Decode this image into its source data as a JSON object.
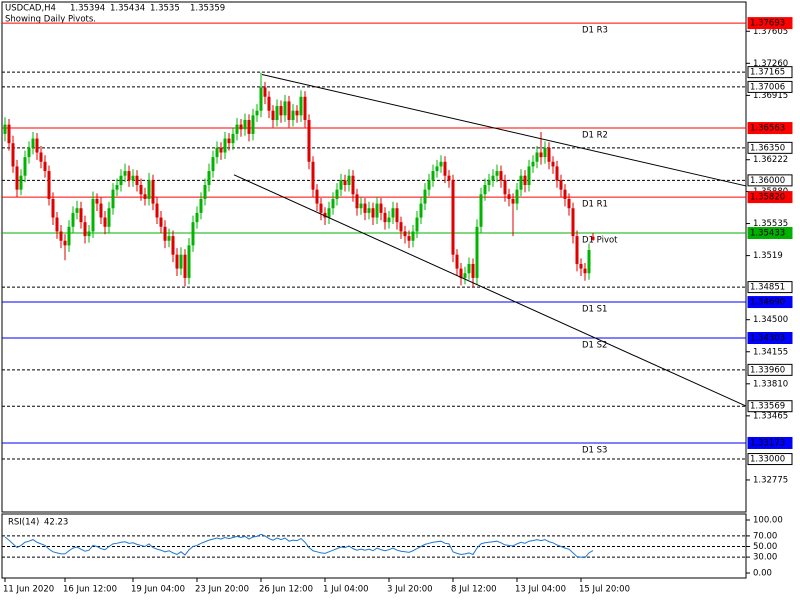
{
  "chart_data": {
    "type": "candlestick",
    "symbol": "USDCAD,H4",
    "subtitle": "Showing Daily Pivots.",
    "bull_color": "#00b400",
    "bear_color": "#e00000",
    "candles": [
      [
        1.365,
        1.3668,
        1.3642,
        1.366
      ],
      [
        1.366,
        1.3666,
        1.3632,
        1.364
      ],
      [
        1.364,
        1.3648,
        1.3608,
        1.3615
      ],
      [
        1.3615,
        1.3622,
        1.3582,
        1.359
      ],
      [
        1.359,
        1.3612,
        1.3584,
        1.3605
      ],
      [
        1.3605,
        1.3632,
        1.3598,
        1.3625
      ],
      [
        1.3625,
        1.3642,
        1.3618,
        1.3635
      ],
      [
        1.3635,
        1.3652,
        1.3628,
        1.3645
      ],
      [
        1.3645,
        1.3651,
        1.3622,
        1.363
      ],
      [
        1.363,
        1.3637,
        1.3613,
        1.362
      ],
      [
        1.362,
        1.3627,
        1.3603,
        1.361
      ],
      [
        1.361,
        1.3616,
        1.3573,
        1.358
      ],
      [
        1.358,
        1.3587,
        1.3552,
        1.356
      ],
      [
        1.356,
        1.3566,
        1.3537,
        1.3545
      ],
      [
        1.3545,
        1.3552,
        1.3527,
        1.3535
      ],
      [
        1.3535,
        1.3542,
        1.3514,
        1.353
      ],
      [
        1.353,
        1.3557,
        1.3523,
        1.355
      ],
      [
        1.355,
        1.3572,
        1.3543,
        1.3565
      ],
      [
        1.3565,
        1.3578,
        1.3558,
        1.357
      ],
      [
        1.357,
        1.3577,
        1.3548,
        1.3555
      ],
      [
        1.3555,
        1.3562,
        1.3532,
        1.354
      ],
      [
        1.354,
        1.3552,
        1.3533,
        1.3545
      ],
      [
        1.3545,
        1.3588,
        1.3538,
        1.358
      ],
      [
        1.358,
        1.3586,
        1.3567,
        1.3575
      ],
      [
        1.3575,
        1.3582,
        1.3553,
        1.356
      ],
      [
        1.356,
        1.3567,
        1.3542,
        1.355
      ],
      [
        1.355,
        1.3577,
        1.3543,
        1.357
      ],
      [
        1.357,
        1.3597,
        1.3563,
        1.359
      ],
      [
        1.359,
        1.3602,
        1.3583,
        1.3595
      ],
      [
        1.3595,
        1.3612,
        1.3588,
        1.3605
      ],
      [
        1.3605,
        1.3618,
        1.3598,
        1.361
      ],
      [
        1.361,
        1.3616,
        1.3593,
        1.36
      ],
      [
        1.36,
        1.3612,
        1.3593,
        1.3605
      ],
      [
        1.3605,
        1.3611,
        1.3588,
        1.3595
      ],
      [
        1.3595,
        1.3602,
        1.3578,
        1.3585
      ],
      [
        1.3585,
        1.3592,
        1.3573,
        1.358
      ],
      [
        1.358,
        1.3608,
        1.3573,
        1.36
      ],
      [
        1.36,
        1.3606,
        1.3568,
        1.3575
      ],
      [
        1.3575,
        1.3582,
        1.3553,
        1.356
      ],
      [
        1.356,
        1.3567,
        1.3543,
        1.355
      ],
      [
        1.355,
        1.3557,
        1.3527,
        1.3535
      ],
      [
        1.3535,
        1.3548,
        1.3528,
        1.354
      ],
      [
        1.354,
        1.3546,
        1.3512,
        1.352
      ],
      [
        1.352,
        1.3527,
        1.3497,
        1.3505
      ],
      [
        1.3505,
        1.3528,
        1.3498,
        1.352
      ],
      [
        1.352,
        1.3526,
        1.3486,
        1.3495
      ],
      [
        1.3495,
        1.3538,
        1.3488,
        1.353
      ],
      [
        1.353,
        1.3562,
        1.3523,
        1.3555
      ],
      [
        1.3555,
        1.3572,
        1.3548,
        1.3565
      ],
      [
        1.3565,
        1.3587,
        1.3558,
        1.358
      ],
      [
        1.358,
        1.3602,
        1.3573,
        1.3595
      ],
      [
        1.3595,
        1.3618,
        1.3588,
        1.361
      ],
      [
        1.361,
        1.3632,
        1.3603,
        1.3625
      ],
      [
        1.3625,
        1.3642,
        1.3618,
        1.3635
      ],
      [
        1.3635,
        1.3641,
        1.3622,
        1.363
      ],
      [
        1.363,
        1.3652,
        1.3623,
        1.3645
      ],
      [
        1.3645,
        1.3651,
        1.3632,
        1.364
      ],
      [
        1.364,
        1.3657,
        1.3633,
        1.365
      ],
      [
        1.365,
        1.3667,
        1.3643,
        1.366
      ],
      [
        1.366,
        1.3666,
        1.3647,
        1.3655
      ],
      [
        1.3655,
        1.3672,
        1.3648,
        1.3665
      ],
      [
        1.3665,
        1.3671,
        1.3642,
        1.365
      ],
      [
        1.365,
        1.3677,
        1.3643,
        1.367
      ],
      [
        1.367,
        1.3682,
        1.3663,
        1.3675
      ],
      [
        1.3675,
        1.3716,
        1.3668,
        1.37
      ],
      [
        1.37,
        1.3706,
        1.3682,
        1.369
      ],
      [
        1.369,
        1.3696,
        1.3667,
        1.3675
      ],
      [
        1.3675,
        1.3681,
        1.3657,
        1.3665
      ],
      [
        1.3665,
        1.3687,
        1.3658,
        1.368
      ],
      [
        1.368,
        1.3686,
        1.3662,
        1.367
      ],
      [
        1.367,
        1.3692,
        1.3663,
        1.3685
      ],
      [
        1.3685,
        1.3691,
        1.3657,
        1.3665
      ],
      [
        1.3665,
        1.3682,
        1.3658,
        1.3675
      ],
      [
        1.3675,
        1.3681,
        1.3662,
        1.367
      ],
      [
        1.367,
        1.3697,
        1.3663,
        1.369
      ],
      [
        1.369,
        1.3696,
        1.3657,
        1.3665
      ],
      [
        1.3665,
        1.3671,
        1.3612,
        1.362
      ],
      [
        1.362,
        1.3626,
        1.3582,
        1.359
      ],
      [
        1.359,
        1.3596,
        1.3567,
        1.3575
      ],
      [
        1.3575,
        1.3581,
        1.3557,
        1.3565
      ],
      [
        1.3565,
        1.3571,
        1.3552,
        1.356
      ],
      [
        1.356,
        1.3577,
        1.3553,
        1.357
      ],
      [
        1.357,
        1.3587,
        1.3563,
        1.358
      ],
      [
        1.358,
        1.3597,
        1.3573,
        1.359
      ],
      [
        1.359,
        1.3607,
        1.3583,
        1.36
      ],
      [
        1.36,
        1.3606,
        1.3588,
        1.3595
      ],
      [
        1.3595,
        1.3612,
        1.3588,
        1.3605
      ],
      [
        1.3605,
        1.3611,
        1.3577,
        1.3585
      ],
      [
        1.3585,
        1.3591,
        1.3562,
        1.357
      ],
      [
        1.357,
        1.3582,
        1.3563,
        1.3575
      ],
      [
        1.3575,
        1.3581,
        1.3557,
        1.3565
      ],
      [
        1.3565,
        1.3577,
        1.3558,
        1.357
      ],
      [
        1.357,
        1.3576,
        1.3552,
        1.356
      ],
      [
        1.356,
        1.3582,
        1.3553,
        1.3575
      ],
      [
        1.3575,
        1.3581,
        1.3557,
        1.3565
      ],
      [
        1.3565,
        1.3571,
        1.3547,
        1.3555
      ],
      [
        1.3555,
        1.3567,
        1.3548,
        1.356
      ],
      [
        1.356,
        1.3577,
        1.3553,
        1.357
      ],
      [
        1.357,
        1.3576,
        1.3547,
        1.3555
      ],
      [
        1.3555,
        1.3561,
        1.3537,
        1.3545
      ],
      [
        1.3545,
        1.3551,
        1.3532,
        1.354
      ],
      [
        1.354,
        1.3546,
        1.3527,
        1.3535
      ],
      [
        1.3535,
        1.3552,
        1.3528,
        1.3545
      ],
      [
        1.3545,
        1.3567,
        1.3538,
        1.356
      ],
      [
        1.356,
        1.3582,
        1.3553,
        1.3575
      ],
      [
        1.3575,
        1.3597,
        1.3568,
        1.359
      ],
      [
        1.359,
        1.3607,
        1.3583,
        1.36
      ],
      [
        1.36,
        1.3617,
        1.3593,
        1.361
      ],
      [
        1.361,
        1.3622,
        1.3603,
        1.3615
      ],
      [
        1.3615,
        1.3627,
        1.3608,
        1.362
      ],
      [
        1.362,
        1.3626,
        1.3597,
        1.3605
      ],
      [
        1.3605,
        1.3611,
        1.3592,
        1.36
      ],
      [
        1.36,
        1.3606,
        1.3512,
        1.352
      ],
      [
        1.352,
        1.3526,
        1.3497,
        1.3505
      ],
      [
        1.3505,
        1.3511,
        1.3487,
        1.3495
      ],
      [
        1.3495,
        1.3507,
        1.3488,
        1.35
      ],
      [
        1.35,
        1.3517,
        1.3493,
        1.351
      ],
      [
        1.351,
        1.3516,
        1.3485,
        1.3495
      ],
      [
        1.3495,
        1.3558,
        1.3488,
        1.355
      ],
      [
        1.355,
        1.3592,
        1.3543,
        1.3585
      ],
      [
        1.3585,
        1.3602,
        1.3578,
        1.3595
      ],
      [
        1.3595,
        1.3607,
        1.3588,
        1.36
      ],
      [
        1.36,
        1.3612,
        1.3593,
        1.3605
      ],
      [
        1.3605,
        1.3617,
        1.3598,
        1.361
      ],
      [
        1.361,
        1.3616,
        1.3592,
        1.36
      ],
      [
        1.36,
        1.3606,
        1.3577,
        1.3585
      ],
      [
        1.3585,
        1.3591,
        1.3572,
        1.358
      ],
      [
        1.358,
        1.3586,
        1.354,
        1.3575
      ],
      [
        1.3575,
        1.3597,
        1.3568,
        1.359
      ],
      [
        1.359,
        1.3612,
        1.3583,
        1.3605
      ],
      [
        1.3605,
        1.3611,
        1.3587,
        1.3595
      ],
      [
        1.3595,
        1.3622,
        1.3588,
        1.3615
      ],
      [
        1.3615,
        1.3627,
        1.3608,
        1.362
      ],
      [
        1.362,
        1.3637,
        1.3613,
        1.363
      ],
      [
        1.363,
        1.3652,
        1.3617,
        1.3625
      ],
      [
        1.3625,
        1.3642,
        1.3618,
        1.3635
      ],
      [
        1.3635,
        1.3641,
        1.3612,
        1.362
      ],
      [
        1.362,
        1.3626,
        1.3607,
        1.3615
      ],
      [
        1.3615,
        1.3621,
        1.3592,
        1.36
      ],
      [
        1.36,
        1.3606,
        1.3582,
        1.359
      ],
      [
        1.359,
        1.3596,
        1.3572,
        1.358
      ],
      [
        1.358,
        1.3586,
        1.3562,
        1.357
      ],
      [
        1.357,
        1.3576,
        1.3532,
        1.354
      ],
      [
        1.354,
        1.3546,
        1.3502,
        1.351
      ],
      [
        1.351,
        1.3516,
        1.3497,
        1.3505
      ],
      [
        1.3505,
        1.3511,
        1.3492,
        1.35
      ],
      [
        1.35,
        1.3532,
        1.3493,
        1.3525
      ],
      [
        1.35394,
        1.35434,
        1.3535,
        1.35359
      ]
    ],
    "ylim": [
      1.3243,
      1.3792
    ],
    "yticks": [
      1.37605,
      {
        "value": 1.3726,
        "label": "1.37260"
      },
      1.36915,
      1.36222,
      {
        "value": 1.3588,
        "label": "1.35880"
      },
      1.35535,
      1.3519,
      {
        "value": 1.345,
        "label": "1.34500"
      },
      1.34155,
      {
        "value": 1.3381,
        "label": "1.33810"
      },
      1.33465,
      1.32775
    ],
    "xticks": [
      {
        "value": 0,
        "label": "11 Jun 2020"
      },
      {
        "value": 15,
        "label": "16 Jun 12:00"
      },
      {
        "value": 32,
        "label": "19 Jun 04:00"
      },
      {
        "value": 48,
        "label": "23 Jun 20:00"
      },
      {
        "value": 64,
        "label": "26 Jun 12:00"
      },
      {
        "value": 80,
        "label": "1 Jul 04:00"
      },
      {
        "value": 96,
        "label": "3 Jul 20:00"
      },
      {
        "value": 112,
        "label": "8 Jul 12:00"
      },
      {
        "value": 128,
        "label": "13 Jul 04:00"
      },
      {
        "value": 144,
        "label": "15 Jul 20:00"
      }
    ],
    "levels": [
      {
        "value": 1.37693,
        "label": "1.37693",
        "name": "D1 R3",
        "color": "#ff0000",
        "style": "solid"
      },
      {
        "value": 1.37165,
        "label": "1.37165",
        "color": "#000000",
        "style": "dotted"
      },
      {
        "value": 1.37006,
        "label": "1.37006",
        "color": "#000000",
        "style": "dotted"
      },
      {
        "value": 1.36563,
        "label": "1.36563",
        "name": "D1 R2",
        "color": "#ff0000",
        "style": "solid"
      },
      {
        "value": 1.3635,
        "label": "1.36350",
        "color": "#000000",
        "style": "dotted"
      },
      {
        "value": 1.36,
        "label": "1.36000",
        "color": "#000000",
        "style": "dotted"
      },
      {
        "value": 1.3582,
        "label": "1.35820",
        "name": "D1 R1",
        "color": "#ff0000",
        "style": "solid"
      },
      {
        "value": 1.35433,
        "label": "1.35433",
        "name": "D1 Pivot",
        "color": "#00b000",
        "style": "solid"
      },
      {
        "value": 1.34851,
        "label": "1.34851",
        "color": "#000000",
        "style": "dotted"
      },
      {
        "value": 1.3469,
        "label": "1.34690",
        "name": "D1 S1",
        "color": "#0000ff",
        "style": "solid"
      },
      {
        "value": 1.34303,
        "label": "1.34303",
        "name": "D1 S2",
        "color": "#0000ff",
        "style": "solid"
      },
      {
        "value": 1.3396,
        "label": "1.33960",
        "color": "#000000",
        "style": "dotted"
      },
      {
        "value": 1.33569,
        "label": "1.33569",
        "color": "#000000",
        "style": "dotted"
      },
      {
        "value": 1.33173,
        "label": "1.33173",
        "name": "D1 S3",
        "color": "#0000ff",
        "style": "solid"
      },
      {
        "value": 1.33,
        "label": "1.33000",
        "color": "#000000",
        "style": "dotted"
      }
    ],
    "trendlines": [
      {
        "x": [
          64.25,
          185.25
        ],
        "y": [
          1.3714,
          1.3594
        ]
      },
      {
        "x": [
          57.25,
          185.25
        ],
        "y": [
          1.3606,
          1.3357
        ]
      }
    ],
    "rsi": {
      "name": "RSI(14)",
      "color": "#1e78d2",
      "values": [
        68,
        62,
        55,
        48,
        52,
        58,
        60,
        63,
        58,
        55,
        52,
        45,
        40,
        38,
        36,
        36,
        42,
        47,
        49,
        45,
        41,
        43,
        52,
        50,
        46,
        44,
        50,
        55,
        56,
        58,
        59,
        56,
        57,
        54,
        52,
        50,
        55,
        48,
        45,
        43,
        40,
        42,
        38,
        35,
        40,
        34,
        44,
        50,
        52,
        56,
        59,
        62,
        64,
        66,
        64,
        67,
        65,
        67,
        69,
        67,
        69,
        64,
        68,
        69,
        73,
        70,
        65,
        62,
        66,
        63,
        66,
        60,
        62,
        61,
        65,
        58,
        48,
        42,
        40,
        38,
        37,
        40,
        43,
        46,
        49,
        48,
        51,
        46,
        43,
        45,
        43,
        45,
        42,
        47,
        44,
        42,
        44,
        47,
        43,
        41,
        40,
        39,
        42,
        46,
        50,
        54,
        56,
        58,
        59,
        60,
        56,
        55,
        40,
        37,
        35,
        36,
        38,
        35,
        47,
        55,
        57,
        58,
        59,
        60,
        57,
        53,
        52,
        51,
        55,
        58,
        56,
        60,
        61,
        63,
        61,
        63,
        59,
        57,
        53,
        50,
        47,
        45,
        38,
        31,
        30,
        29,
        38,
        42.23
      ],
      "ylim": [
        0,
        100
      ],
      "yticks": [
        {
          "value": 100,
          "label": "100.00"
        },
        {
          "value": 70,
          "label": "70.00"
        },
        {
          "value": 50,
          "label": "50.00"
        },
        {
          "value": 30,
          "label": "30.00"
        },
        {
          "value": 0,
          "label": "0.00"
        }
      ]
    }
  }
}
